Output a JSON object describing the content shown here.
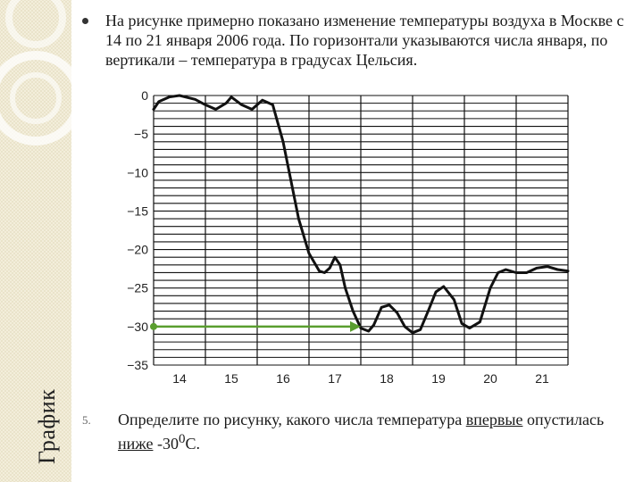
{
  "side_title": "График",
  "intro_text": "На рисунке примерно показано изменение температуры воздуха в Москве с 14 по 21 января 2006 года. По горизонтали указываются числа января, по вертикали – температура в градусах Цельсия.",
  "question": {
    "number": "5.",
    "part1": "Определите по рисунку, какого числа температура ",
    "underlined1": "впервые",
    "part2": " опустилась ",
    "underlined2": "ниже",
    "part3": " -30",
    "sup": "0",
    "part4": "С."
  },
  "chart_data": {
    "type": "line",
    "title": "",
    "xlabel": "",
    "ylabel": "",
    "x_ticks": [
      14,
      15,
      16,
      17,
      18,
      19,
      20,
      21
    ],
    "y_ticks": [
      "0",
      "−5",
      "−10",
      "−15",
      "−20",
      "−25",
      "−30",
      "−35"
    ],
    "xlim": [
      13.5,
      21.5
    ],
    "ylim": [
      -35,
      0
    ],
    "grid": true,
    "series": [
      {
        "name": "",
        "x": [
          13.5,
          13.6,
          13.8,
          14.0,
          14.3,
          14.5,
          14.7,
          14.9,
          15.0,
          15.2,
          15.4,
          15.6,
          15.8,
          16.0,
          16.15,
          16.3,
          16.5,
          16.7,
          16.8,
          16.9,
          17.0,
          17.1,
          17.2,
          17.35,
          17.5,
          17.65,
          17.75,
          17.9,
          18.05,
          18.2,
          18.35,
          18.5,
          18.65,
          18.8,
          18.95,
          19.1,
          19.3,
          19.45,
          19.6,
          19.8,
          20.0,
          20.15,
          20.3,
          20.5,
          20.7,
          20.9,
          21.1,
          21.3,
          21.5
        ],
        "y": [
          -1.8,
          -0.8,
          -0.2,
          0.0,
          -0.5,
          -1.2,
          -1.8,
          -1.0,
          -0.2,
          -1.2,
          -1.8,
          -0.6,
          -1.2,
          -6.0,
          -11.0,
          -16.0,
          -20.5,
          -22.8,
          -23.0,
          -22.4,
          -21.0,
          -22.0,
          -25.0,
          -28.0,
          -30.2,
          -30.6,
          -29.8,
          -27.5,
          -27.2,
          -28.2,
          -30.0,
          -30.8,
          -30.4,
          -28.0,
          -25.5,
          -24.8,
          -26.5,
          -29.6,
          -30.2,
          -29.4,
          -25.0,
          -23.0,
          -22.6,
          -23.0,
          -23.0,
          -22.4,
          -22.2,
          -22.6,
          -22.8
        ]
      }
    ],
    "arrow": {
      "from": [
        13.5,
        -30
      ],
      "to": [
        17.5,
        -30
      ],
      "color": "#5a9e2f"
    },
    "colors": {
      "line": "#111111",
      "grid": "#111111",
      "arrow": "#5a9e2f"
    }
  }
}
